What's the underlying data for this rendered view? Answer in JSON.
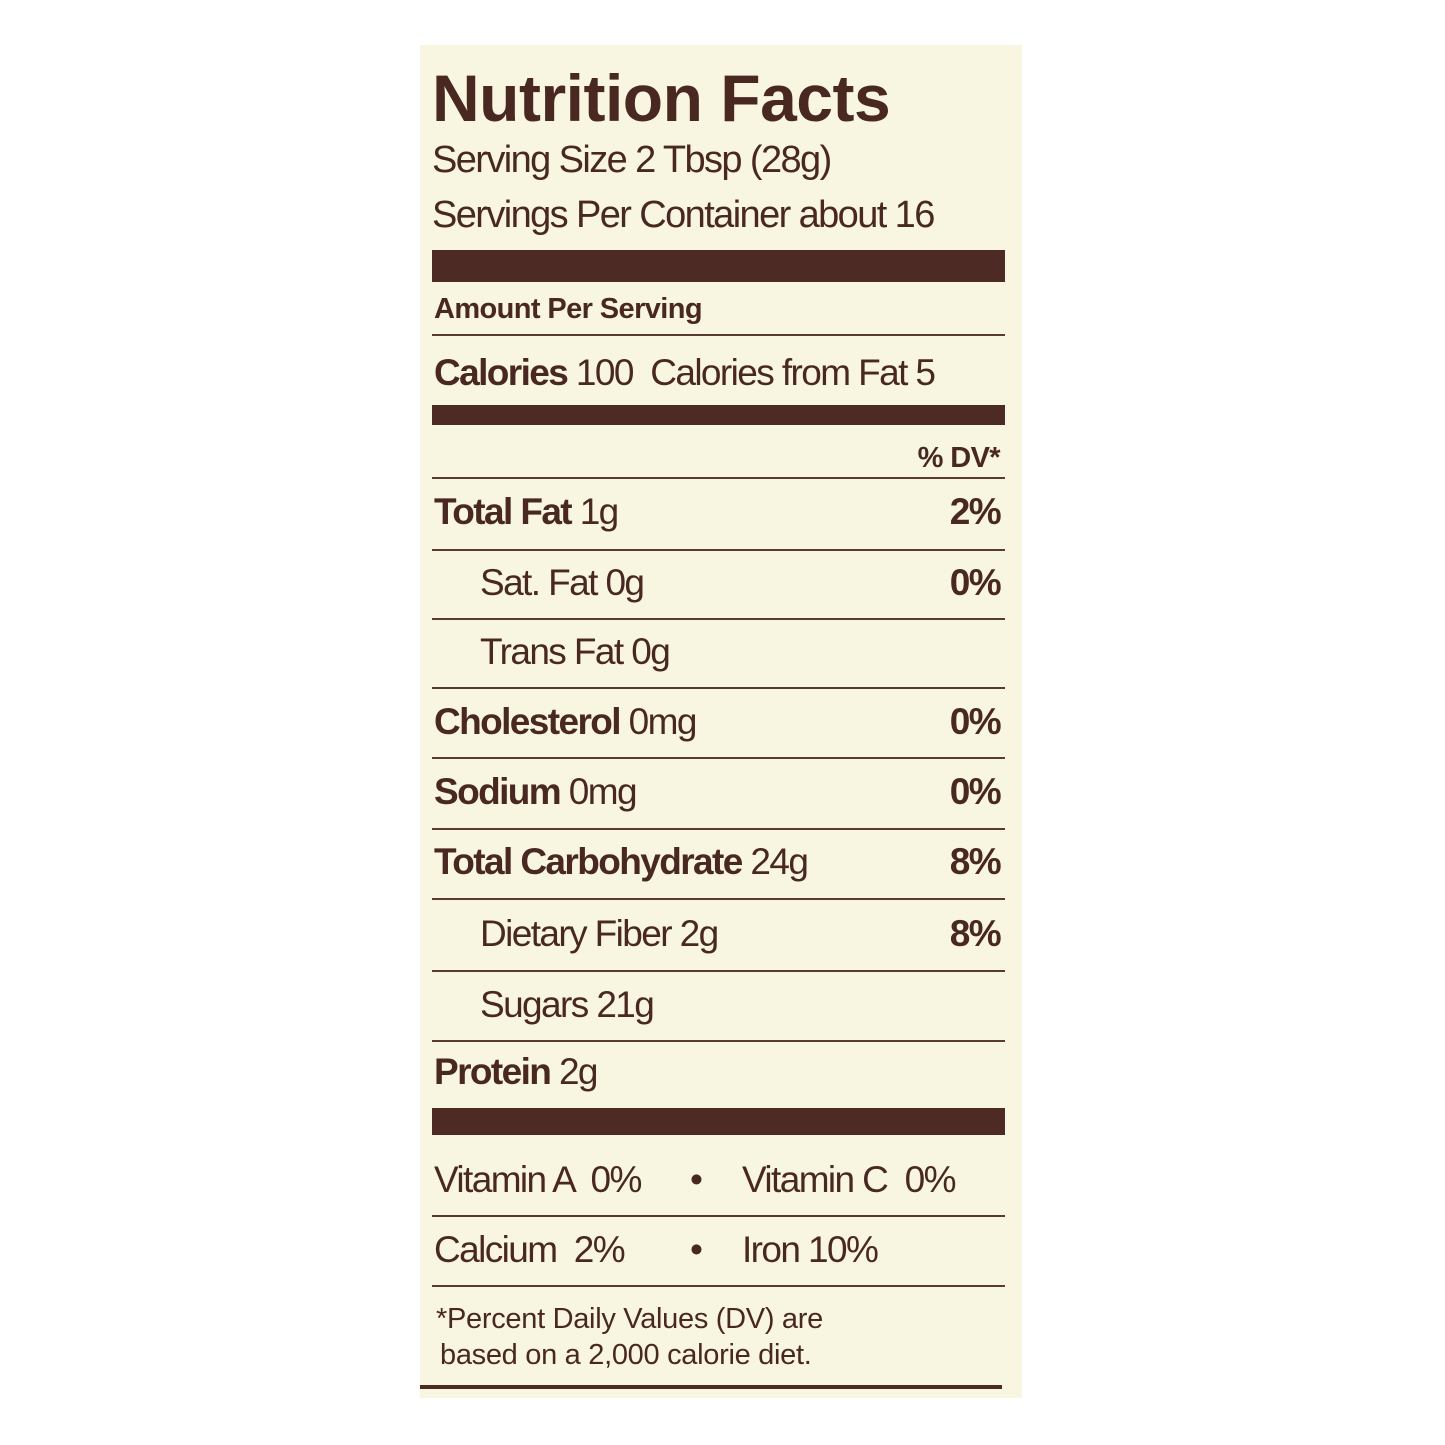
{
  "label": {
    "title": "Nutrition Facts",
    "serving_size": "Serving Size 2 Tbsp (28g)",
    "servings_per_container": "Servings Per Container about 16",
    "amount_per_serving": "Amount Per Serving",
    "calories_label": "Calories",
    "calories_value": "100",
    "calories_from_fat": "Calories from Fat 5",
    "dv_header": "% DV*",
    "nutrients": [
      {
        "name": "Total Fat",
        "amount": "1g",
        "dv": "2%"
      },
      {
        "name": "Sat. Fat",
        "amount": "0g",
        "dv": "0%"
      },
      {
        "name": "Trans Fat",
        "amount": "0g",
        "dv": ""
      },
      {
        "name": "Cholesterol",
        "amount": "0mg",
        "dv": "0%"
      },
      {
        "name": "Sodium",
        "amount": "0mg",
        "dv": "0%"
      },
      {
        "name": "Total Carbohydrate",
        "amount": "24g",
        "dv": "8%"
      },
      {
        "name": "Dietary Fiber",
        "amount": "2g",
        "dv": "8%"
      },
      {
        "name": "Sugars",
        "amount": "21g",
        "dv": ""
      },
      {
        "name": "Protein",
        "amount": "2g",
        "dv": ""
      }
    ],
    "vitamins": [
      {
        "left": "Vitamin A  0%",
        "right": "Vitamin C  0%"
      },
      {
        "left": "Calcium  2%",
        "right": "Iron 10%"
      }
    ],
    "separator": "•",
    "footnote_line1": "*Percent Daily Values (DV) are",
    "footnote_line2": "based on a 2,000 calorie diet."
  },
  "colors": {
    "ink": "#4a2822",
    "background": "#f8f6e1"
  }
}
